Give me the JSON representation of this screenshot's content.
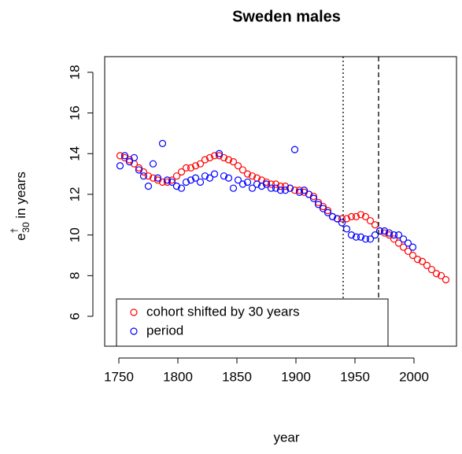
{
  "chart_data": {
    "type": "scatter",
    "title": "Sweden males",
    "xlabel": "year",
    "ylabel_symbol": "e",
    "ylabel_superscript": "†",
    "ylabel_subscript": "30",
    "ylabel_text": " in years",
    "xlim": [
      1738,
      2036
    ],
    "ylim": [
      4.53,
      18.77
    ],
    "xticks": [
      1750,
      1800,
      1850,
      1900,
      1950,
      2000
    ],
    "yticks": [
      6,
      8,
      10,
      12,
      14,
      16,
      18
    ],
    "legend": "bottomleft",
    "vlines": [
      {
        "x": 1940,
        "style": "dotted"
      },
      {
        "x": 1970,
        "style": "dashed"
      }
    ],
    "x": [
      1751,
      1755,
      1759,
      1763,
      1767,
      1771,
      1775,
      1779,
      1783,
      1787,
      1791,
      1795,
      1799,
      1803,
      1807,
      1811,
      1815,
      1819,
      1823,
      1827,
      1831,
      1835,
      1839,
      1843,
      1847,
      1851,
      1855,
      1859,
      1863,
      1867,
      1871,
      1875,
      1879,
      1883,
      1887,
      1891,
      1895,
      1899,
      1903,
      1907,
      1911,
      1915,
      1919,
      1923,
      1927,
      1931,
      1935,
      1939,
      1943,
      1947,
      1951,
      1955,
      1959,
      1963,
      1967,
      1971,
      1975,
      1979,
      1983,
      1987,
      1991,
      1995,
      1999,
      2003,
      2007,
      2011,
      2015,
      2019,
      2023,
      2027
    ],
    "series": [
      {
        "name": "cohort shifted by 30 years",
        "color": "#ff0000",
        "values": [
          13.9,
          13.8,
          13.7,
          13.5,
          13.3,
          13.1,
          12.9,
          12.8,
          12.7,
          12.6,
          12.6,
          12.7,
          12.9,
          13.1,
          13.3,
          13.3,
          13.4,
          13.5,
          13.7,
          13.8,
          13.9,
          13.9,
          13.8,
          13.7,
          13.6,
          13.4,
          13.2,
          13.0,
          12.9,
          12.8,
          12.7,
          12.6,
          12.5,
          12.5,
          12.4,
          12.4,
          12.3,
          12.2,
          12.2,
          12.1,
          12.0,
          11.9,
          11.6,
          11.4,
          11.2,
          10.9,
          10.8,
          10.8,
          10.8,
          10.9,
          10.9,
          11.0,
          10.9,
          10.7,
          10.5,
          10.2,
          10.1,
          10.0,
          9.8,
          9.6,
          9.4,
          9.2,
          9.0,
          8.8,
          8.7,
          8.5,
          8.3,
          8.1,
          8.0,
          7.8
        ]
      },
      {
        "name": "period",
        "color": "#0000ff",
        "values": [
          13.4,
          13.9,
          13.6,
          13.8,
          13.2,
          12.9,
          12.4,
          13.5,
          12.8,
          14.5,
          12.7,
          12.6,
          12.4,
          12.3,
          12.6,
          12.7,
          12.8,
          12.6,
          12.9,
          12.8,
          13.0,
          14.0,
          12.9,
          12.8,
          12.3,
          12.7,
          12.5,
          12.6,
          12.3,
          12.5,
          12.4,
          12.5,
          12.3,
          12.3,
          12.2,
          12.2,
          12.3,
          14.2,
          12.1,
          12.2,
          12.0,
          11.8,
          11.5,
          11.3,
          11.1,
          10.9,
          10.8,
          10.6,
          10.3,
          10.0,
          9.9,
          9.9,
          9.8,
          9.8,
          10.0,
          10.2,
          10.2,
          10.1,
          10.0,
          10.0,
          9.8,
          9.6,
          9.4,
          null,
          null,
          null,
          null,
          null,
          null,
          null
        ]
      }
    ]
  }
}
